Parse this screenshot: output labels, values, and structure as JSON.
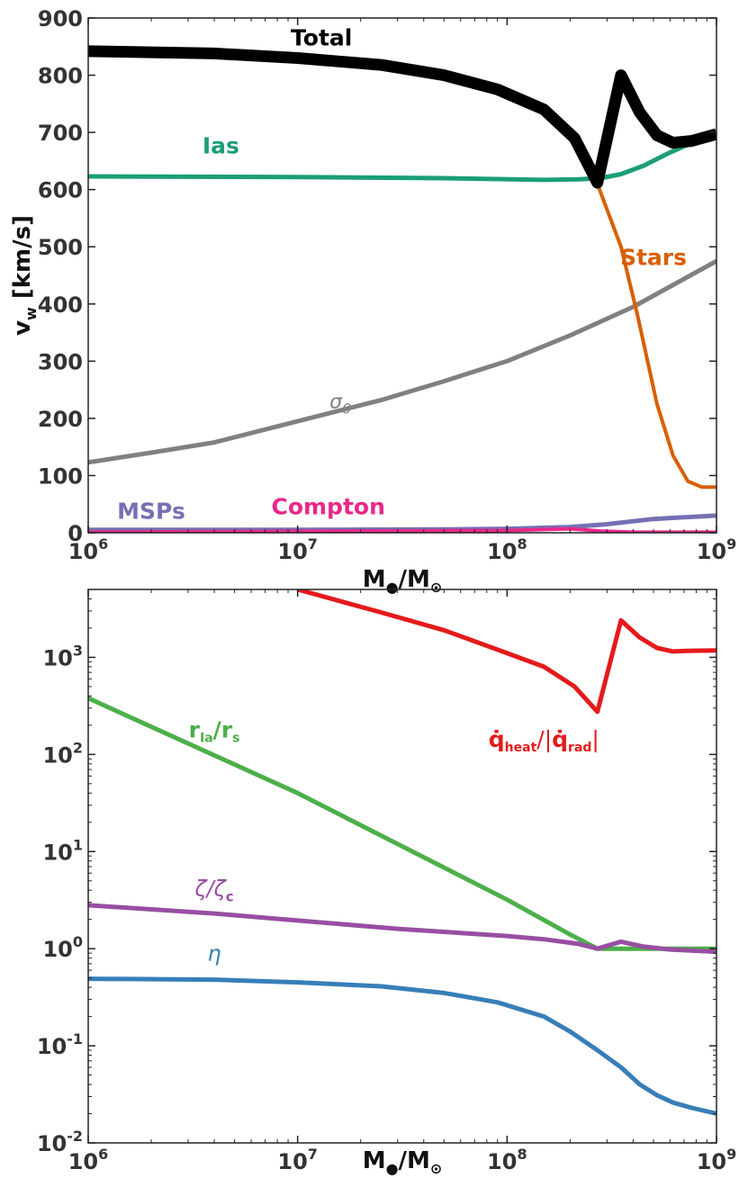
{
  "chart_data": [
    {
      "type": "line",
      "panel": "top",
      "title": "",
      "xlabel": "M●/M⊙",
      "ylabel": "v_w [km/s]",
      "xscale": "log",
      "yscale": "linear",
      "xlim": [
        1000000,
        1000000000
      ],
      "ylim": [
        0,
        900
      ],
      "x_ticks": [
        {
          "value": 1000000,
          "base": "10",
          "exp": "6"
        },
        {
          "value": 10000000,
          "base": "10",
          "exp": "7"
        },
        {
          "value": 100000000,
          "base": "10",
          "exp": "8"
        },
        {
          "value": 1000000000,
          "base": "10",
          "exp": "9"
        }
      ],
      "y_ticks": [
        {
          "value": 0,
          "label": "0"
        },
        {
          "value": 100,
          "label": "100"
        },
        {
          "value": 200,
          "label": "200"
        },
        {
          "value": 300,
          "label": "300"
        },
        {
          "value": 400,
          "label": "400"
        },
        {
          "value": 500,
          "label": "500"
        },
        {
          "value": 600,
          "label": "600"
        },
        {
          "value": 700,
          "label": "700"
        },
        {
          "value": 800,
          "label": "800"
        },
        {
          "value": 900,
          "label": "900"
        }
      ],
      "series": [
        {
          "name": "sigma0",
          "label": "σ₀",
          "color": "#808080",
          "width": 5,
          "label_value": [
            16000000,
            218
          ],
          "x": [
            1000000,
            2000000,
            4000000,
            10000000,
            25000000,
            50000000,
            100000000,
            200000000,
            400000000,
            1000000000
          ],
          "y": [
            123,
            140,
            158,
            195,
            232,
            265,
            300,
            345,
            395,
            475
          ]
        },
        {
          "name": "stars",
          "label": "Stars",
          "color": "#d95f02",
          "width": 4,
          "label_value": [
            500000000,
            468
          ],
          "x": [
            270000000,
            350000000,
            420000000,
            520000000,
            620000000,
            730000000,
            850000000,
            1000000000
          ],
          "y": [
            610,
            500,
            380,
            225,
            135,
            90,
            80,
            80
          ]
        },
        {
          "name": "ias",
          "label": "Ias",
          "color": "#1b9e77",
          "width": 5,
          "label_value": [
            4300000,
            663
          ],
          "x": [
            1000000,
            10000000,
            50000000,
            150000000,
            220000000,
            280000000,
            350000000,
            450000000,
            600000000,
            800000000,
            1000000000
          ],
          "y": [
            623,
            622,
            620,
            617,
            618,
            620,
            627,
            642,
            665,
            685,
            695
          ]
        },
        {
          "name": "msps",
          "label": "MSPs",
          "color": "#7570b3",
          "width": 5,
          "label_value": [
            2000000,
            24
          ],
          "x": [
            1000000,
            10000000,
            50000000,
            100000000,
            200000000,
            300000000,
            500000000,
            700000000,
            1000000000
          ],
          "y": [
            5,
            5,
            6,
            7,
            10,
            15,
            24,
            27,
            30
          ]
        },
        {
          "name": "compton",
          "label": "Compton",
          "color": "#e7298a",
          "width": 4,
          "label_value": [
            14000000,
            32
          ],
          "x": [
            1000000,
            100000000,
            200000000,
            280000000,
            400000000,
            1000000000
          ],
          "y": [
            1,
            4,
            7,
            3,
            1,
            1
          ]
        },
        {
          "name": "total",
          "label": "Total",
          "color": "#000000",
          "width": 13,
          "label_value": [
            13000000,
            852
          ],
          "x": [
            1000000,
            4000000,
            10000000,
            25000000,
            50000000,
            90000000,
            150000000,
            210000000,
            270000000,
            350000000,
            430000000,
            520000000,
            620000000,
            760000000,
            1000000000
          ],
          "y": [
            842,
            838,
            830,
            818,
            800,
            775,
            740,
            690,
            612,
            800,
            735,
            695,
            682,
            685,
            697
          ]
        }
      ]
    },
    {
      "type": "line",
      "panel": "bottom",
      "title": "",
      "xlabel": "M●/M⊙",
      "ylabel": "",
      "xscale": "log",
      "yscale": "log",
      "xlim": [
        1000000,
        1000000000
      ],
      "ylim": [
        0.01,
        5000
      ],
      "x_ticks": [
        {
          "value": 1000000,
          "base": "10",
          "exp": "6"
        },
        {
          "value": 10000000,
          "base": "10",
          "exp": "7"
        },
        {
          "value": 100000000,
          "base": "10",
          "exp": "8"
        },
        {
          "value": 1000000000,
          "base": "10",
          "exp": "9"
        }
      ],
      "y_ticks": [
        {
          "value": 0.01,
          "base": "10",
          "exp": "-2"
        },
        {
          "value": 0.1,
          "base": "10",
          "exp": "-1"
        },
        {
          "value": 1,
          "base": "10",
          "exp": "0"
        },
        {
          "value": 10,
          "base": "10",
          "exp": "1"
        },
        {
          "value": 100,
          "base": "10",
          "exp": "2"
        },
        {
          "value": 1000,
          "base": "10",
          "exp": "3"
        }
      ],
      "series": [
        {
          "name": "r_ratio",
          "label": "r_Ia/r_s",
          "color": "#4daf4a",
          "width": 5,
          "label_value": [
            4000000,
            150
          ],
          "x": [
            1000000,
            10000000,
            100000000,
            200000000,
            270000000,
            350000000,
            500000000,
            1000000000
          ],
          "y": [
            380,
            40,
            3.2,
            1.4,
            1.0,
            1.0,
            1.0,
            1.0
          ]
        },
        {
          "name": "zeta",
          "label": "ζ/ζc",
          "color": "#984ea3",
          "width": 5,
          "label_value": [
            4000000,
            3.5
          ],
          "x": [
            1000000,
            4000000,
            10000000,
            30000000,
            100000000,
            150000000,
            220000000,
            270000000,
            350000000,
            450000000,
            600000000,
            1000000000
          ],
          "y": [
            2.8,
            2.3,
            1.95,
            1.6,
            1.35,
            1.25,
            1.12,
            1.0,
            1.18,
            1.05,
            0.98,
            0.93
          ]
        },
        {
          "name": "eta",
          "label": "η",
          "color": "#377eb8",
          "width": 5,
          "label_value": [
            4000000,
            0.75
          ],
          "x": [
            1000000,
            4000000,
            10000000,
            25000000,
            50000000,
            90000000,
            150000000,
            200000000,
            270000000,
            350000000,
            430000000,
            520000000,
            620000000,
            760000000,
            1000000000
          ],
          "y": [
            0.49,
            0.48,
            0.45,
            0.41,
            0.35,
            0.28,
            0.2,
            0.14,
            0.09,
            0.06,
            0.04,
            0.031,
            0.026,
            0.023,
            0.02
          ]
        },
        {
          "name": "q_ratio",
          "label": "q̇_heat/|q̇_rad|",
          "color": "#e41a1c",
          "width": 5,
          "label_value": [
            150000000,
            120
          ],
          "x": [
            10000000,
            25000000,
            50000000,
            90000000,
            150000000,
            210000000,
            270000000,
            350000000,
            430000000,
            520000000,
            620000000,
            760000000,
            1000000000
          ],
          "y": [
            5000,
            2900,
            1900,
            1200,
            800,
            500,
            275,
            2400,
            1600,
            1250,
            1150,
            1170,
            1180
          ]
        }
      ],
      "labels": {
        "r_ratio": {
          "main1": "r",
          "sub1": "Ia",
          "slash": "/",
          "main2": "r",
          "sub2": "s"
        },
        "zeta": {
          "text": "ζ/ζ",
          "sub": "c"
        },
        "eta": {
          "text": "η"
        },
        "q_ratio": {
          "q1": "q̇",
          "sub1": "heat",
          "mid": "/|",
          "q2": "q̇",
          "sub2": "rad",
          "end": "|"
        }
      }
    }
  ]
}
